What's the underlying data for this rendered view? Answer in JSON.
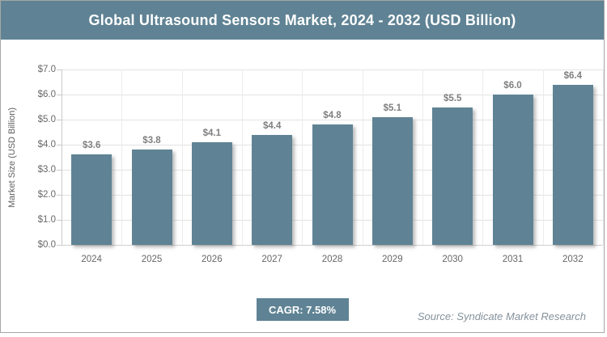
{
  "chart_data": {
    "type": "bar",
    "title": "Global Ultrasound Sensors Market, 2024 - 2032 (USD Billion)",
    "categories": [
      "2024",
      "2025",
      "2026",
      "2027",
      "2028",
      "2029",
      "2030",
      "2031",
      "2032"
    ],
    "values": [
      3.6,
      3.8,
      4.1,
      4.4,
      4.8,
      5.1,
      5.5,
      6.0,
      6.4
    ],
    "data_labels": [
      "$3.6",
      "$3.8",
      "$4.1",
      "$4.4",
      "$4.8",
      "$5.1",
      "$5.5",
      "$6.0",
      "$6.4"
    ],
    "xlabel": "",
    "ylabel": "Market Size (USD Billion)",
    "ylim": [
      0,
      7
    ],
    "ytick_step": 1.0,
    "ytick_labels": [
      "$0.0",
      "$1.0",
      "$2.0",
      "$3.0",
      "$4.0",
      "$5.0",
      "$6.0",
      "$7.0"
    ],
    "grid": true,
    "legend": false,
    "bar_color": "#5f8394",
    "cagr": "CAGR: 7.58%",
    "source": "Source: Syndicate Market Research"
  },
  "colors": {
    "accent_teal": "#5f8394",
    "frame_border": "#a6a6a6",
    "gridline": "#e3e3e3",
    "label_gray": "#7f7f7f",
    "title_text": "#ffffff"
  }
}
